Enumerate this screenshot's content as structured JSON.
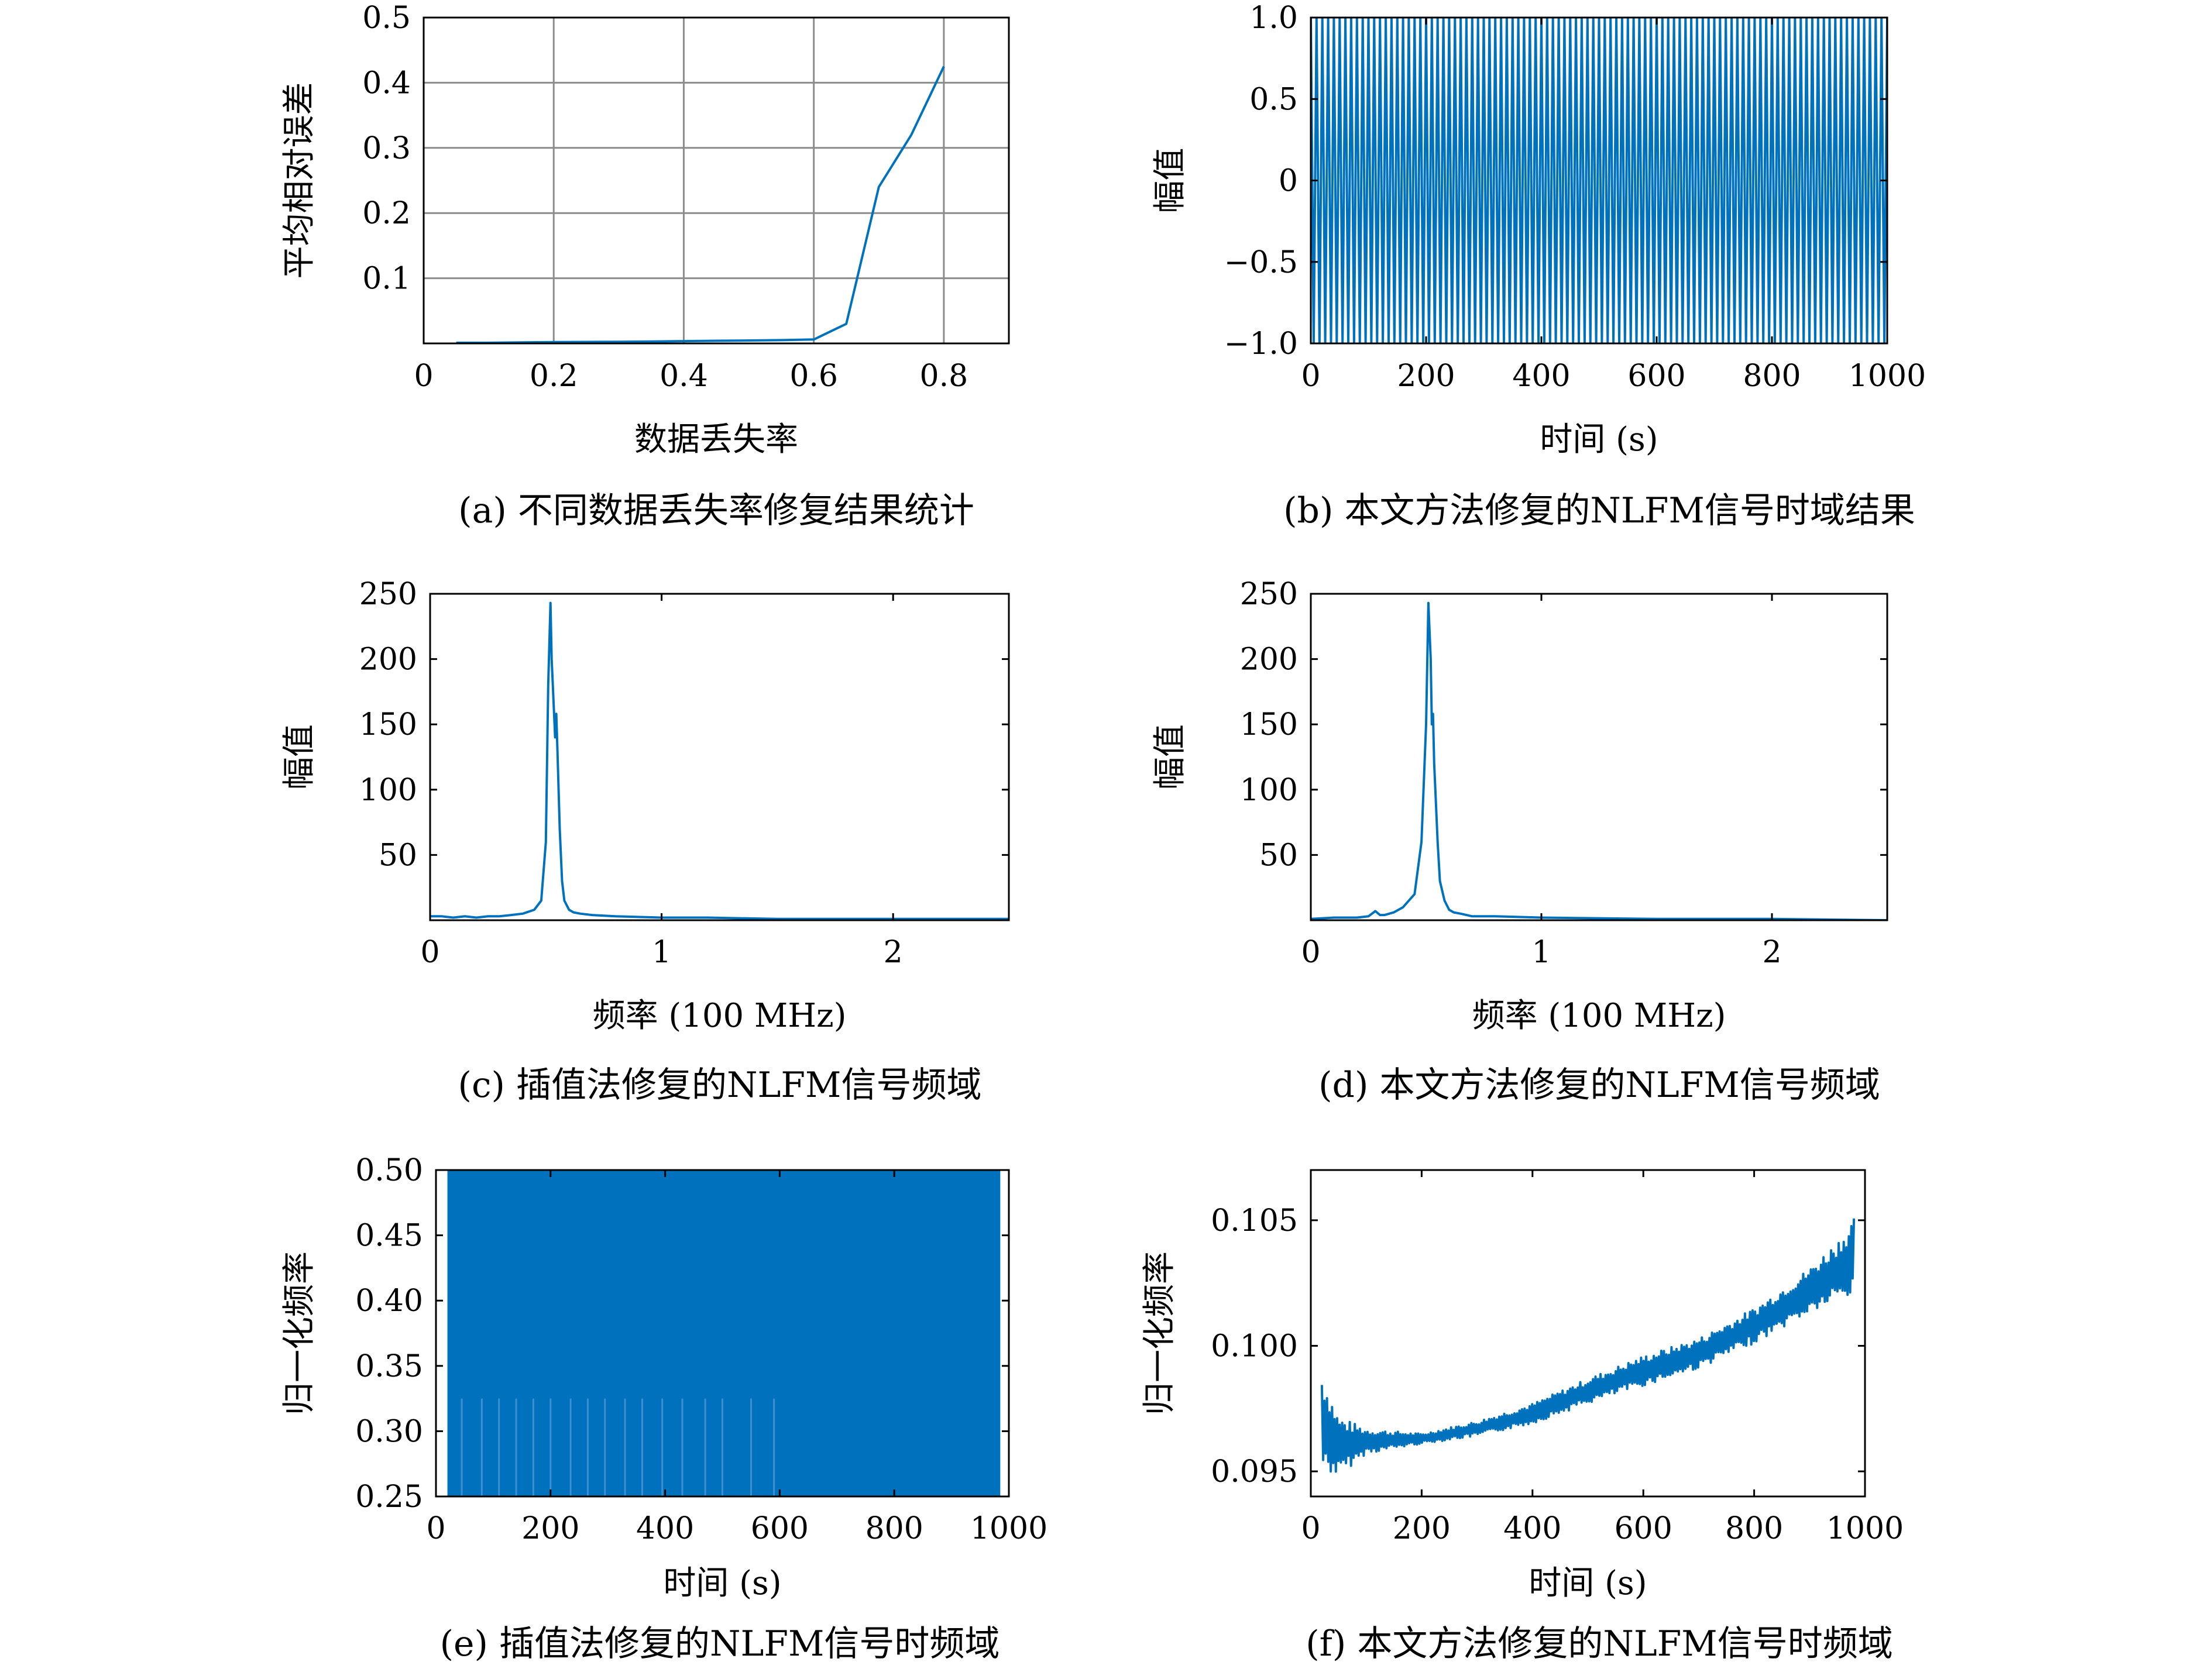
{
  "colors": {
    "series": "#0072bd",
    "grid": "#8c8c8c",
    "axis": "#000000"
  },
  "chart_data": [
    {
      "id": "a",
      "type": "line",
      "caption": "(a) 不同数据丢失率修复结果统计",
      "xlabel": "数据丢失率",
      "ylabel": "平均相对误差",
      "xlim": [
        0,
        0.9
      ],
      "ylim": [
        0,
        0.5
      ],
      "grid": true,
      "xticks": [
        0,
        0.2,
        0.4,
        0.6,
        0.8
      ],
      "xtick_labels": [
        "0",
        "0.2",
        "0.4",
        "0.6",
        "0.8"
      ],
      "yticks": [
        0.1,
        0.2,
        0.3,
        0.4,
        0.5
      ],
      "ytick_labels": [
        "0.1",
        "0.2",
        "0.3",
        "0.4",
        "0.5"
      ],
      "series": [
        {
          "x": [
            0.05,
            0.1,
            0.15,
            0.2,
            0.25,
            0.3,
            0.35,
            0.4,
            0.45,
            0.5,
            0.55,
            0.6,
            0.65,
            0.7,
            0.75,
            0.8
          ],
          "y": [
            0.001,
            0.001,
            0.0015,
            0.002,
            0.0022,
            0.0025,
            0.003,
            0.0035,
            0.004,
            0.0045,
            0.005,
            0.006,
            0.03,
            0.24,
            0.32,
            0.425
          ]
        }
      ]
    },
    {
      "id": "b",
      "type": "line",
      "caption": "(b) 本文方法修复的NLFM信号时域结果",
      "xlabel": "时间 (s)",
      "ylabel": "幅值",
      "xlim": [
        0,
        1000
      ],
      "ylim": [
        -1,
        1
      ],
      "grid": false,
      "xticks": [
        0,
        200,
        400,
        600,
        800,
        1000
      ],
      "xtick_labels": [
        "0",
        "200",
        "400",
        "600",
        "800",
        "1000"
      ],
      "yticks": [
        -1,
        -0.5,
        0,
        0.5,
        1
      ],
      "ytick_labels": [
        "−1.0",
        "−0.5",
        "0",
        "0.5",
        "1.0"
      ],
      "signal": {
        "kind": "oscillation",
        "x_start": 0,
        "x_end": 1000,
        "amplitude": 1,
        "cycles": 100
      }
    },
    {
      "id": "c",
      "type": "line",
      "caption": "(c) 插值法修复的NLFM信号频域",
      "xlabel": "频率 (100 MHz)",
      "ylabel": "幅值",
      "xlim": [
        0,
        2.5
      ],
      "ylim": [
        0,
        250
      ],
      "grid": false,
      "xticks": [
        0,
        1,
        2
      ],
      "xtick_labels": [
        "0",
        "1",
        "2"
      ],
      "yticks": [
        50,
        100,
        150,
        200,
        250
      ],
      "ytick_labels": [
        "50",
        "100",
        "150",
        "200",
        "250"
      ],
      "series": [
        {
          "x": [
            0.0,
            0.05,
            0.1,
            0.15,
            0.2,
            0.25,
            0.3,
            0.35,
            0.4,
            0.45,
            0.48,
            0.5,
            0.51,
            0.52,
            0.525,
            0.53,
            0.54,
            0.545,
            0.55,
            0.56,
            0.57,
            0.58,
            0.6,
            0.62,
            0.65,
            0.7,
            0.8,
            1.0,
            1.2,
            1.5,
            2.0,
            2.5
          ],
          "y": [
            3,
            3,
            2,
            3,
            2,
            3,
            3,
            4,
            5,
            8,
            15,
            60,
            180,
            243,
            200,
            180,
            140,
            158,
            130,
            70,
            30,
            15,
            8,
            6,
            5,
            4,
            3,
            2,
            2,
            1,
            1,
            1
          ]
        }
      ]
    },
    {
      "id": "d",
      "type": "line",
      "caption": "(d) 本文方法修复的NLFM信号频域",
      "xlabel": "频率 (100 MHz)",
      "ylabel": "幅值",
      "xlim": [
        0,
        2.5
      ],
      "ylim": [
        0,
        250
      ],
      "grid": false,
      "xticks": [
        0,
        1,
        2
      ],
      "xtick_labels": [
        "0",
        "1",
        "2"
      ],
      "yticks": [
        50,
        100,
        150,
        200,
        250
      ],
      "ytick_labels": [
        "50",
        "100",
        "150",
        "200",
        "250"
      ],
      "series": [
        {
          "x": [
            0.0,
            0.1,
            0.2,
            0.25,
            0.28,
            0.3,
            0.32,
            0.36,
            0.4,
            0.45,
            0.48,
            0.5,
            0.51,
            0.52,
            0.525,
            0.53,
            0.535,
            0.54,
            0.55,
            0.56,
            0.58,
            0.6,
            0.62,
            0.65,
            0.7,
            0.8,
            1.0,
            1.5,
            2.0,
            2.5
          ],
          "y": [
            1,
            2,
            2,
            3,
            7,
            4,
            4,
            6,
            10,
            20,
            60,
            150,
            243,
            200,
            150,
            158,
            120,
            100,
            60,
            30,
            15,
            8,
            6,
            5,
            3,
            3,
            2,
            1,
            1,
            0
          ]
        }
      ]
    },
    {
      "id": "e",
      "type": "area",
      "caption": "(e) 插值法修复的NLFM信号时频域",
      "xlabel": "时间 (s)",
      "ylabel": "归一化频率",
      "xlim": [
        0,
        1000
      ],
      "ylim": [
        0.25,
        0.5
      ],
      "grid": false,
      "xticks": [
        0,
        200,
        400,
        600,
        800,
        1000
      ],
      "xtick_labels": [
        "0",
        "200",
        "400",
        "600",
        "800",
        "1000"
      ],
      "yticks": [
        0.25,
        0.3,
        0.35,
        0.4,
        0.45,
        0.5
      ],
      "ytick_labels": [
        "0.25",
        "0.30",
        "0.35",
        "0.40",
        "0.45",
        "0.50"
      ],
      "fill": {
        "x_start": 20,
        "x_end": 985,
        "y_low": 0.25,
        "y_high": 0.5
      },
      "faint_lines_x": [
        45,
        80,
        110,
        140,
        170,
        200,
        235,
        265,
        295,
        330,
        360,
        395,
        430,
        470,
        500,
        550,
        590
      ],
      "faint_lines_top_y": 0.325
    },
    {
      "id": "f",
      "type": "line",
      "caption": "(f) 本文方法修复的NLFM信号时频域",
      "xlabel": "时间 (s)",
      "ylabel": "归一化频率",
      "xlim": [
        0,
        1000
      ],
      "ylim": [
        0.094,
        0.107
      ],
      "grid": false,
      "xticks": [
        0,
        200,
        400,
        600,
        800,
        1000
      ],
      "xtick_labels": [
        "0",
        "200",
        "400",
        "600",
        "800",
        "1000"
      ],
      "yticks": [
        0.095,
        0.1,
        0.105
      ],
      "ytick_labels": [
        "0.095",
        "0.100",
        "0.105"
      ],
      "signal": {
        "kind": "noisy_trend",
        "x": [
          20,
          50,
          100,
          200,
          300,
          400,
          500,
          600,
          700,
          800,
          900,
          950,
          980
        ],
        "trend": [
          0.097,
          0.096,
          0.0962,
          0.0963,
          0.0967,
          0.0973,
          0.0982,
          0.099,
          0.0997,
          0.1008,
          0.1022,
          0.103,
          0.1035
        ],
        "noise": [
          0.002,
          0.0012,
          0.0005,
          0.0002,
          0.0003,
          0.0004,
          0.0005,
          0.0006,
          0.0006,
          0.0007,
          0.0009,
          0.0012,
          0.0016
        ]
      }
    }
  ]
}
